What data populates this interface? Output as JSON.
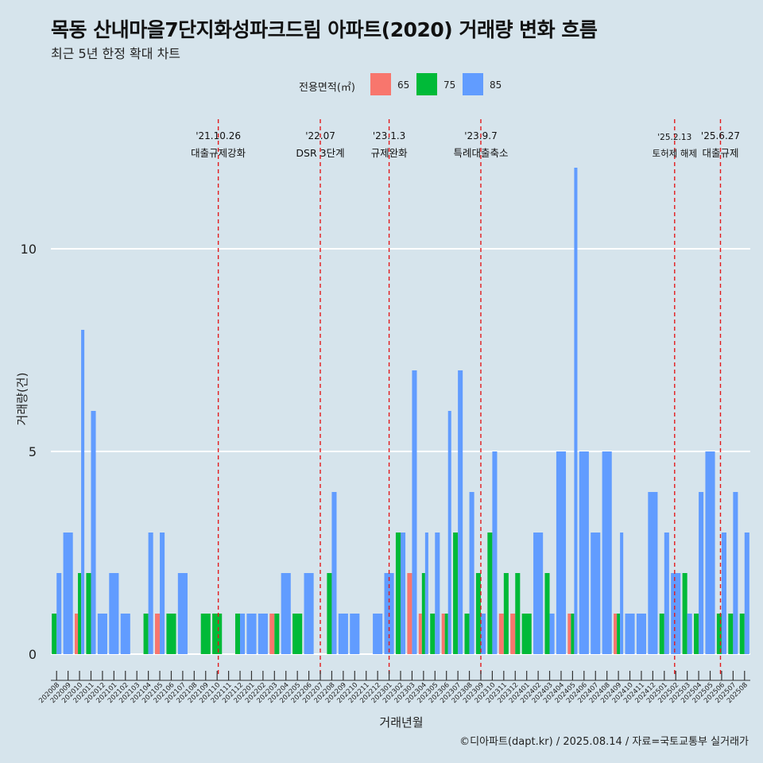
{
  "title": "목동 산내마을7단지화성파크드림 아파트(2020) 거래량 변화 흐름",
  "subtitle": "최근 5년 한정 확대 차트",
  "source": "©디아파트(dapt.kr) / 2025.08.14 / 자료=국토교통부 실거래가",
  "colors": {
    "background": "#d6e4ec",
    "s65": "#f8766d",
    "s75": "#00ba38",
    "s85": "#619cff",
    "event_line": "#e31a1c",
    "grid": "#ffffff"
  },
  "legend": {
    "title": "전용면적(㎡)",
    "items": [
      {
        "label": "65",
        "color": "#f8766d"
      },
      {
        "label": "75",
        "color": "#00ba38"
      },
      {
        "label": "85",
        "color": "#619cff"
      }
    ]
  },
  "chart_data": {
    "type": "bar",
    "xlabel": "거래년월",
    "ylabel": "거래량(건)",
    "ylim": [
      0,
      12
    ],
    "yticks": [
      0,
      5,
      10
    ],
    "grid": true,
    "legend_position": "top",
    "categories": [
      "202008",
      "202009",
      "202010",
      "202011",
      "202012",
      "202101",
      "202102",
      "202103",
      "202104",
      "202105",
      "202106",
      "202107",
      "202108",
      "202109",
      "202110",
      "202111",
      "202112",
      "202201",
      "202202",
      "202203",
      "202204",
      "202205",
      "202206",
      "202207",
      "202208",
      "202209",
      "202210",
      "202211",
      "202212",
      "202301",
      "202302",
      "202303",
      "202304",
      "202305",
      "202306",
      "202307",
      "202308",
      "202309",
      "202310",
      "202311",
      "202312",
      "202401",
      "202402",
      "202403",
      "202404",
      "202405",
      "202406",
      "202407",
      "202408",
      "202409",
      "202410",
      "202411",
      "202412",
      "202501",
      "202502",
      "202503",
      "202504",
      "202505",
      "202506",
      "202507",
      "202508"
    ],
    "series": [
      {
        "name": "65",
        "values": [
          0,
          0,
          1,
          0,
          0,
          0,
          0,
          0,
          0,
          1,
          0,
          0,
          0,
          0,
          0,
          0,
          0,
          0,
          0,
          1,
          0,
          0,
          0,
          0,
          0,
          0,
          0,
          0,
          0,
          0,
          0,
          2,
          1,
          0,
          1,
          0,
          0,
          0,
          0,
          1,
          1,
          0,
          0,
          0,
          0,
          1,
          0,
          0,
          0,
          1,
          0,
          0,
          0,
          0,
          0,
          0,
          0,
          0,
          0,
          0,
          0
        ]
      },
      {
        "name": "75",
        "values": [
          1,
          0,
          2,
          2,
          0,
          0,
          0,
          0,
          1,
          0,
          1,
          0,
          0,
          1,
          1,
          0,
          1,
          0,
          0,
          1,
          0,
          1,
          0,
          0,
          2,
          0,
          0,
          0,
          0,
          0,
          3,
          0,
          2,
          1,
          1,
          3,
          1,
          2,
          3,
          2,
          2,
          1,
          0,
          2,
          0,
          1,
          0,
          0,
          0,
          1,
          0,
          0,
          0,
          1,
          0,
          2,
          1,
          0,
          1,
          1,
          1
        ]
      },
      {
        "name": "85",
        "values": [
          2,
          3,
          8,
          6,
          1,
          2,
          1,
          0,
          3,
          3,
          0,
          2,
          0,
          0,
          0,
          0,
          1,
          1,
          1,
          0,
          2,
          0,
          2,
          0,
          4,
          1,
          1,
          0,
          1,
          2,
          3,
          7,
          3,
          3,
          6,
          7,
          4,
          1,
          5,
          0,
          0,
          0,
          3,
          1,
          5,
          12,
          5,
          3,
          5,
          3,
          1,
          1,
          4,
          3,
          2,
          1,
          4,
          5,
          3,
          4,
          3
        ]
      }
    ],
    "events": [
      {
        "date": "'21.10.26",
        "label": "대출규제강화",
        "position": 14.1
      },
      {
        "date": "'22.07",
        "label": "DSR 3단계",
        "position": 23.0
      },
      {
        "date": "'23.1.3",
        "label": "규제완화",
        "position": 29.0
      },
      {
        "date": "'23.9.7",
        "label": "특례대출축소",
        "position": 37.0
      },
      {
        "date": "'25.2.13",
        "label": "토허제 해제",
        "position": 53.9
      },
      {
        "date": "'25.6.27",
        "label": "대출규제",
        "position": 57.9
      }
    ]
  }
}
